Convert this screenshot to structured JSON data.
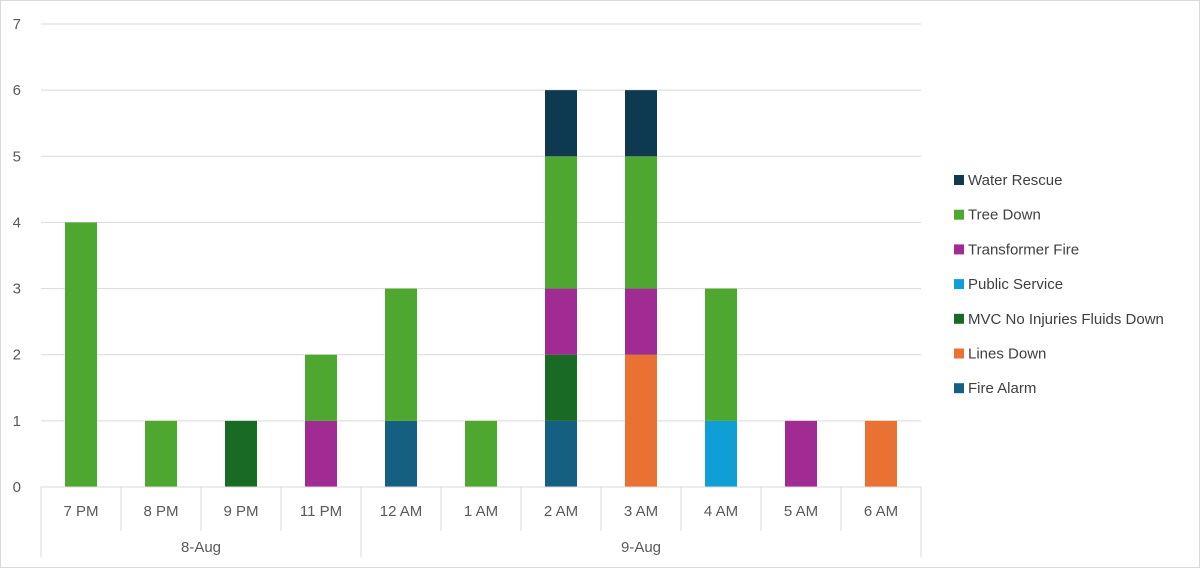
{
  "chart_data": {
    "type": "bar",
    "stacked": true,
    "categories": [
      "7 PM",
      "8 PM",
      "9 PM",
      "11 PM",
      "12 AM",
      "1 AM",
      "2 AM",
      "3 AM",
      "4 AM",
      "5 AM",
      "6 AM"
    ],
    "groups": [
      {
        "label": "8-Aug",
        "count": 4
      },
      {
        "label": "9-Aug",
        "count": 7
      }
    ],
    "ylim": [
      0,
      7
    ],
    "yticks": [
      "0",
      "1",
      "2",
      "3",
      "4",
      "5",
      "6",
      "7"
    ],
    "grid": true,
    "legend_position": "right",
    "title": "",
    "xlabel": "",
    "ylabel": "",
    "series": [
      {
        "name": "Fire Alarm",
        "color": "#156082",
        "values": [
          0,
          0,
          0,
          0,
          1,
          0,
          1,
          0,
          0,
          0,
          0
        ]
      },
      {
        "name": "Lines Down",
        "color": "#E97132",
        "values": [
          0,
          0,
          0,
          0,
          0,
          0,
          0,
          2,
          0,
          0,
          1
        ]
      },
      {
        "name": "MVC No Injuries Fluids Down",
        "color": "#196B24",
        "values": [
          0,
          0,
          1,
          0,
          0,
          0,
          1,
          0,
          0,
          0,
          0
        ]
      },
      {
        "name": "Public Service",
        "color": "#0F9ED5",
        "values": [
          0,
          0,
          0,
          0,
          0,
          0,
          0,
          0,
          1,
          0,
          0
        ]
      },
      {
        "name": "Transformer Fire",
        "color": "#A02B93",
        "values": [
          0,
          0,
          0,
          1,
          0,
          0,
          1,
          1,
          0,
          1,
          0
        ]
      },
      {
        "name": "Tree Down",
        "color": "#4EA72E",
        "values": [
          4,
          1,
          0,
          1,
          2,
          1,
          2,
          2,
          2,
          0,
          0
        ]
      },
      {
        "name": "Water Rescue",
        "color": "#0E3A51",
        "values": [
          0,
          0,
          0,
          0,
          0,
          0,
          1,
          1,
          0,
          0,
          0
        ]
      }
    ]
  }
}
